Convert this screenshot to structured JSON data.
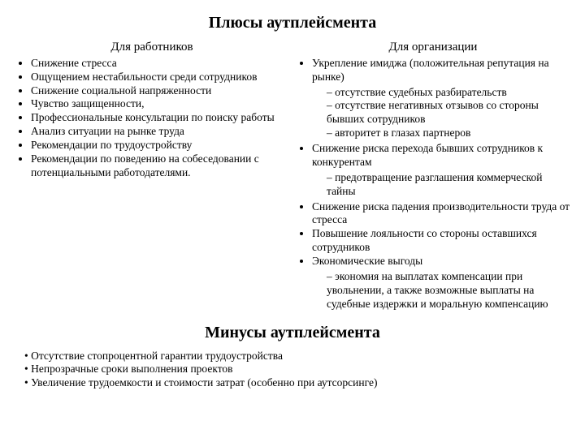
{
  "title": "Плюсы аутплейсмента",
  "left": {
    "heading": "Для работников",
    "items": [
      "Снижение стресса",
      "Ощущением нестабильности среди сотрудников",
      "Снижение социальной напряженности",
      "Чувство защищенности,",
      "Профессиональные консультации по поиску работы",
      "Анализ ситуации на рынке труда",
      "Рекомендации по трудоустройству",
      "Рекомендации по поведению на собеседовании с потенциальными работодателями."
    ]
  },
  "right": {
    "heading": "Для организации",
    "items": [
      {
        "text": "Укрепление имиджа (положительная репутация на рынке)",
        "sub": [
          "отсутствие судебных разбирательств",
          "отсутствие негативных отзывов со стороны бывших сотрудников",
          "авторитет в глазах партнеров"
        ]
      },
      {
        "text": "Снижение риска перехода бывших сотрудников к конкурентам",
        "sub": [
          "предотвращение разглашения коммерческой тайны"
        ]
      },
      {
        "text": "Снижение риска падения производительности труда от стресса"
      },
      {
        "text": "Повышение лояльности со стороны оставшихся сотрудников"
      },
      {
        "text": "Экономические выгоды",
        "sub": [
          "экономия на выплатах компенсации при увольнении, а также возможные выплаты на судебные издержки и моральную компенсацию"
        ]
      }
    ]
  },
  "subtitle": "Минусы аутплейсмента",
  "minuses": [
    "Отсутствие стопроцентной гарантии трудоустройства",
    "Непрозрачные сроки выполнения проектов",
    "Увеличение трудоемкости и стоимости затрат (особенно при аутсорсинге)"
  ]
}
